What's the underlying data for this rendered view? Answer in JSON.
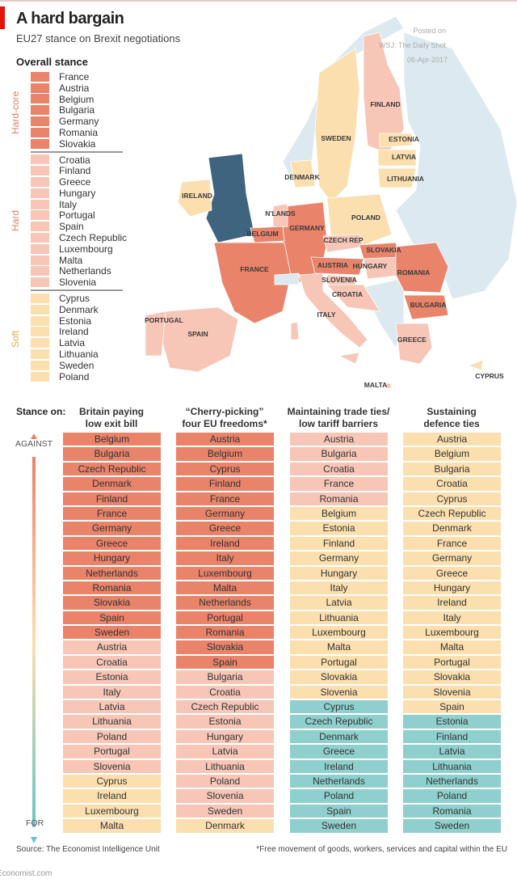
{
  "title": "A hard bargain",
  "subtitle": "EU27 stance on Brexit negotiations",
  "posted": {
    "line1": "Posted on",
    "line2": "WSJ: The Daily Shot",
    "line3": "06-Apr-2017"
  },
  "colors": {
    "hardcore": "#e9836a",
    "hard": "#f7c6b6",
    "soft": "#fcdfae",
    "for": "#8fd0cf",
    "non_eu": "#dde9f1",
    "uk": "#3f6480",
    "red_accent": "#e3120b"
  },
  "legend": {
    "title": "Overall stance",
    "groups": [
      {
        "label": "Hard-core",
        "stance": "hardcore",
        "countries": [
          "France",
          "Austria",
          "Belgium",
          "Bulgaria",
          "Germany",
          "Romania",
          "Slovakia"
        ]
      },
      {
        "label": "Hard",
        "stance": "hard",
        "countries": [
          "Croatia",
          "Finland",
          "Greece",
          "Hungary",
          "Italy",
          "Portugal",
          "Spain",
          "Czech Republic",
          "Luxembourg",
          "Malta",
          "Netherlands",
          "Slovenia"
        ]
      },
      {
        "label": "Soft",
        "stance": "soft",
        "countries": [
          "Cyprus",
          "Denmark",
          "Estonia",
          "Ireland",
          "Latvia",
          "Lithuania",
          "Sweden",
          "Poland"
        ]
      }
    ]
  },
  "map_labels": {
    "finland": "FINLAND",
    "sweden": "SWEDEN",
    "estonia": "ESTONIA",
    "latvia": "LATVIA",
    "lithuania": "LITHUANIA",
    "denmark": "DENMARK",
    "ireland": "IRELAND",
    "netherlands": "N'LANDS",
    "poland": "POLAND",
    "germany": "GERMANY",
    "belgium": "BELGIUM",
    "czech": "CZECH REP",
    "slovakia": "SLOVAKIA",
    "austria": "AUSTRIA",
    "hungary": "HUNGARY",
    "france": "FRANCE",
    "romania": "ROMANIA",
    "slovenia": "SLOVENIA",
    "croatia": "CROATIA",
    "bulgaria": "BULGARIA",
    "italy": "ITALY",
    "portugal": "PORTUGAL",
    "spain": "SPAIN",
    "greece": "GREECE",
    "cyprus": "CYPRUS",
    "malta": "MALTA"
  },
  "chart_data": {
    "type": "table",
    "stance_label": "Stance on:",
    "axis": {
      "top": "AGAINST",
      "bottom": "FOR"
    },
    "columns": [
      {
        "header1": "Britain paying",
        "header2": "low exit bill",
        "rows": [
          [
            "Belgium",
            "hardcore"
          ],
          [
            "Bulgaria",
            "hardcore"
          ],
          [
            "Czech Republic",
            "hardcore"
          ],
          [
            "Denmark",
            "hardcore"
          ],
          [
            "Finland",
            "hardcore"
          ],
          [
            "France",
            "hardcore"
          ],
          [
            "Germany",
            "hardcore"
          ],
          [
            "Greece",
            "hardcore"
          ],
          [
            "Hungary",
            "hardcore"
          ],
          [
            "Netherlands",
            "hardcore"
          ],
          [
            "Romania",
            "hardcore"
          ],
          [
            "Slovakia",
            "hardcore"
          ],
          [
            "Spain",
            "hardcore"
          ],
          [
            "Sweden",
            "hardcore"
          ],
          [
            "Austria",
            "hard"
          ],
          [
            "Croatia",
            "hard"
          ],
          [
            "Estonia",
            "hard"
          ],
          [
            "Italy",
            "hard"
          ],
          [
            "Latvia",
            "hard"
          ],
          [
            "Lithuania",
            "hard"
          ],
          [
            "Poland",
            "hard"
          ],
          [
            "Portugal",
            "hard"
          ],
          [
            "Slovenia",
            "hard"
          ],
          [
            "Cyprus",
            "soft"
          ],
          [
            "Ireland",
            "soft"
          ],
          [
            "Luxembourg",
            "soft"
          ],
          [
            "Malta",
            "soft"
          ]
        ]
      },
      {
        "header1": "“Cherry-picking”",
        "header2": "four EU freedoms*",
        "rows": [
          [
            "Austria",
            "hardcore"
          ],
          [
            "Belgium",
            "hardcore"
          ],
          [
            "Cyprus",
            "hardcore"
          ],
          [
            "Finland",
            "hardcore"
          ],
          [
            "France",
            "hardcore"
          ],
          [
            "Germany",
            "hardcore"
          ],
          [
            "Greece",
            "hardcore"
          ],
          [
            "Ireland",
            "hardcore"
          ],
          [
            "Italy",
            "hardcore"
          ],
          [
            "Luxembourg",
            "hardcore"
          ],
          [
            "Malta",
            "hardcore"
          ],
          [
            "Netherlands",
            "hardcore"
          ],
          [
            "Portugal",
            "hardcore"
          ],
          [
            "Romania",
            "hardcore"
          ],
          [
            "Slovakia",
            "hardcore"
          ],
          [
            "Spain",
            "hardcore"
          ],
          [
            "Bulgaria",
            "hard"
          ],
          [
            "Croatia",
            "hard"
          ],
          [
            "Czech Republic",
            "hard"
          ],
          [
            "Estonia",
            "hard"
          ],
          [
            "Hungary",
            "hard"
          ],
          [
            "Latvia",
            "hard"
          ],
          [
            "Lithuania",
            "hard"
          ],
          [
            "Poland",
            "hard"
          ],
          [
            "Slovenia",
            "hard"
          ],
          [
            "Sweden",
            "hard"
          ],
          [
            "Denmark",
            "soft"
          ]
        ]
      },
      {
        "header1": "Maintaining trade ties/",
        "header2": "low tariff barriers",
        "rows": [
          [
            "Austria",
            "hard"
          ],
          [
            "Bulgaria",
            "hard"
          ],
          [
            "Croatia",
            "hard"
          ],
          [
            "France",
            "hard"
          ],
          [
            "Romania",
            "hard"
          ],
          [
            "Belgium",
            "soft"
          ],
          [
            "Estonia",
            "soft"
          ],
          [
            "Finland",
            "soft"
          ],
          [
            "Germany",
            "soft"
          ],
          [
            "Hungary",
            "soft"
          ],
          [
            "Italy",
            "soft"
          ],
          [
            "Latvia",
            "soft"
          ],
          [
            "Lithuania",
            "soft"
          ],
          [
            "Luxembourg",
            "soft"
          ],
          [
            "Malta",
            "soft"
          ],
          [
            "Portugal",
            "soft"
          ],
          [
            "Slovakia",
            "soft"
          ],
          [
            "Slovenia",
            "soft"
          ],
          [
            "Cyprus",
            "for"
          ],
          [
            "Czech Republic",
            "for"
          ],
          [
            "Denmark",
            "for"
          ],
          [
            "Greece",
            "for"
          ],
          [
            "Ireland",
            "for"
          ],
          [
            "Netherlands",
            "for"
          ],
          [
            "Poland",
            "for"
          ],
          [
            "Spain",
            "for"
          ],
          [
            "Sweden",
            "for"
          ]
        ]
      },
      {
        "header1": "Sustaining",
        "header2": "defence ties",
        "rows": [
          [
            "Austria",
            "soft"
          ],
          [
            "Belgium",
            "soft"
          ],
          [
            "Bulgaria",
            "soft"
          ],
          [
            "Croatia",
            "soft"
          ],
          [
            "Cyprus",
            "soft"
          ],
          [
            "Czech Republic",
            "soft"
          ],
          [
            "Denmark",
            "soft"
          ],
          [
            "France",
            "soft"
          ],
          [
            "Germany",
            "soft"
          ],
          [
            "Greece",
            "soft"
          ],
          [
            "Hungary",
            "soft"
          ],
          [
            "Ireland",
            "soft"
          ],
          [
            "Italy",
            "soft"
          ],
          [
            "Luxembourg",
            "soft"
          ],
          [
            "Malta",
            "soft"
          ],
          [
            "Portugal",
            "soft"
          ],
          [
            "Slovakia",
            "soft"
          ],
          [
            "Slovenia",
            "soft"
          ],
          [
            "Spain",
            "soft"
          ],
          [
            "Estonia",
            "for"
          ],
          [
            "Finland",
            "for"
          ],
          [
            "Latvia",
            "for"
          ],
          [
            "Lithuania",
            "for"
          ],
          [
            "Netherlands",
            "for"
          ],
          [
            "Poland",
            "for"
          ],
          [
            "Romania",
            "for"
          ],
          [
            "Sweden",
            "for"
          ]
        ]
      }
    ]
  },
  "footer": {
    "source": "Source: The Economist Intelligence Unit",
    "footnote": "*Free movement of goods, workers, services and capital within the EU",
    "brand": "Economist.com"
  }
}
